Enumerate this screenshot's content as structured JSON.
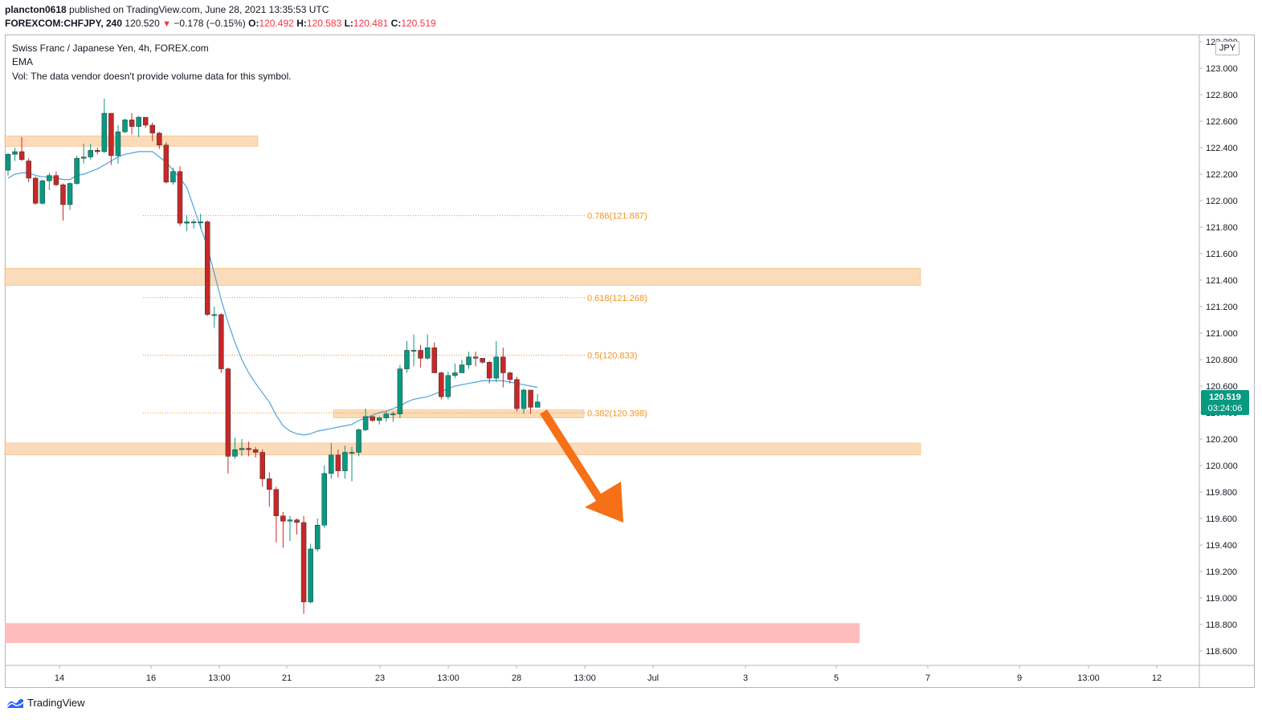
{
  "header": {
    "user": "plancton0618",
    "published_text": " published on TradingView.com, June 28, 2021 13:35:53 UTC",
    "symbol": "FOREXCOM:CHFJPY, 240",
    "last": "120.520",
    "change_arrow": "▼",
    "change": "−0.178 (−0.15%)",
    "o_label": "O:",
    "o": "120.492",
    "h_label": "H:",
    "h": "120.583",
    "l_label": "L:",
    "l": "120.481",
    "c_label": "C:",
    "c": "120.519"
  },
  "legend": {
    "title": "Swiss Franc / Japanese Yen, 4h, FOREX.com",
    "ema": "EMA",
    "vol": "Vol: The data vendor doesn't provide volume data for this symbol."
  },
  "price_axis": {
    "currency": "JPY",
    "current_price": "120.519",
    "countdown": "03:24:06"
  },
  "footer": {
    "brand": "TradingView"
  },
  "colors": {
    "up": "#089981",
    "down": "#c62828",
    "ema": "#4ea4dc",
    "zone": "#f9cfa1",
    "zone_red": "#ffb8b8",
    "fib": "#f7931a",
    "arrow": "#f57017"
  },
  "chart_data": {
    "type": "candlestick",
    "ylim": [
      118.5,
      123.2
    ],
    "y_ticks": [
      118.6,
      118.8,
      119.0,
      119.2,
      119.4,
      119.6,
      119.8,
      120.0,
      120.2,
      120.4,
      120.6,
      120.8,
      121.0,
      121.2,
      121.4,
      121.6,
      121.8,
      122.0,
      122.2,
      122.4,
      122.6,
      122.8,
      123.0,
      123.2
    ],
    "y_tick_labels": [
      "118.600",
      "118.800",
      "119.000",
      "119.200",
      "119.400",
      "119.600",
      "119.800",
      "120.000",
      "120.200",
      "120.400",
      "120.600",
      "120.800",
      "121.000",
      "121.200",
      "121.400",
      "121.600",
      "121.800",
      "122.000",
      "122.200",
      "122.400",
      "122.600",
      "122.800",
      "123.000",
      "123.200"
    ],
    "x_tick_labels": [
      "14",
      "16",
      "13:00",
      "21",
      "23",
      "13:00",
      "28",
      "13:00",
      "Jul",
      "3",
      "5",
      "7",
      "9",
      "13:00",
      "12"
    ],
    "fib_levels": [
      {
        "label": "0.786(121.887)",
        "value": 121.887
      },
      {
        "label": "0.618(121.268)",
        "value": 121.268
      },
      {
        "label": "0.5(120.833)",
        "value": 120.833
      },
      {
        "label": "0.382(120.398)",
        "value": 120.398
      }
    ],
    "zones": [
      {
        "low": 122.41,
        "high": 122.49,
        "color": "orange"
      },
      {
        "low": 121.36,
        "high": 121.49,
        "color": "orange"
      },
      {
        "low": 120.36,
        "high": 120.42,
        "color": "orange"
      },
      {
        "low": 120.08,
        "high": 120.17,
        "color": "orange"
      },
      {
        "low": 118.66,
        "high": 118.81,
        "color": "red"
      }
    ],
    "candles": [
      [
        122.23,
        122.35,
        122.19,
        122.36
      ],
      [
        122.35,
        122.37,
        122.3,
        122.4
      ],
      [
        122.37,
        122.31,
        122.3,
        122.48
      ],
      [
        122.3,
        122.17,
        122.14,
        122.32
      ],
      [
        122.17,
        121.98,
        121.97,
        122.18
      ],
      [
        121.98,
        122.15,
        121.97,
        122.16
      ],
      [
        122.15,
        122.19,
        122.08,
        122.21
      ],
      [
        122.19,
        122.12,
        122.11,
        122.22
      ],
      [
        122.12,
        121.97,
        121.85,
        122.13
      ],
      [
        121.97,
        122.13,
        121.93,
        122.14
      ],
      [
        122.13,
        122.32,
        122.12,
        122.34
      ],
      [
        122.32,
        122.33,
        122.28,
        122.43
      ],
      [
        122.33,
        122.38,
        122.31,
        122.43
      ],
      [
        122.38,
        122.37,
        122.35,
        122.4
      ],
      [
        122.37,
        122.66,
        122.36,
        122.77
      ],
      [
        122.66,
        122.34,
        122.27,
        122.66
      ],
      [
        122.34,
        122.52,
        122.28,
        122.57
      ],
      [
        122.52,
        122.61,
        122.51,
        122.62
      ],
      [
        122.61,
        122.56,
        122.5,
        122.66
      ],
      [
        122.56,
        122.63,
        122.48,
        122.64
      ],
      [
        122.63,
        122.57,
        122.55,
        122.63
      ],
      [
        122.57,
        122.51,
        122.45,
        122.59
      ],
      [
        122.51,
        122.42,
        122.39,
        122.52
      ],
      [
        122.42,
        122.14,
        122.13,
        122.44
      ],
      [
        122.14,
        122.22,
        122.12,
        122.25
      ],
      [
        122.22,
        121.83,
        121.81,
        122.26
      ],
      [
        121.83,
        121.84,
        121.77,
        121.89
      ],
      [
        121.84,
        121.84,
        121.79,
        121.86
      ],
      [
        121.84,
        121.84,
        121.79,
        121.9
      ],
      [
        121.84,
        121.14,
        121.13,
        121.85
      ],
      [
        121.14,
        121.14,
        121.04,
        121.2
      ],
      [
        121.14,
        120.73,
        120.7,
        121.15
      ],
      [
        120.73,
        120.07,
        119.94,
        120.74
      ],
      [
        120.07,
        120.12,
        120.05,
        120.21
      ],
      [
        120.12,
        120.13,
        120.07,
        120.2
      ],
      [
        120.13,
        120.12,
        120.07,
        120.18
      ],
      [
        120.12,
        120.1,
        120.06,
        120.14
      ],
      [
        120.1,
        119.9,
        119.84,
        120.12
      ],
      [
        119.9,
        119.82,
        119.69,
        119.95
      ],
      [
        119.82,
        119.62,
        119.42,
        119.84
      ],
      [
        119.62,
        119.58,
        119.38,
        119.65
      ],
      [
        119.58,
        119.59,
        119.43,
        119.62
      ],
      [
        119.59,
        119.57,
        119.48,
        119.6
      ],
      [
        119.57,
        118.97,
        118.88,
        119.62
      ],
      [
        118.97,
        119.37,
        118.96,
        119.41
      ],
      [
        119.37,
        119.55,
        119.35,
        119.6
      ],
      [
        119.55,
        119.94,
        119.53,
        120.0
      ],
      [
        119.94,
        120.08,
        119.9,
        120.17
      ],
      [
        120.08,
        119.96,
        119.91,
        120.12
      ],
      [
        119.96,
        120.1,
        119.9,
        120.15
      ],
      [
        120.1,
        120.1,
        119.88,
        120.14
      ],
      [
        120.1,
        120.27,
        120.07,
        120.28
      ],
      [
        120.27,
        120.37,
        120.26,
        120.43
      ],
      [
        120.37,
        120.34,
        120.33,
        120.37
      ],
      [
        120.34,
        120.36,
        120.31,
        120.37
      ],
      [
        120.36,
        120.39,
        120.33,
        120.41
      ],
      [
        120.39,
        120.39,
        120.33,
        120.41
      ],
      [
        120.39,
        120.73,
        120.36,
        120.76
      ],
      [
        120.73,
        120.87,
        120.7,
        120.94
      ],
      [
        120.87,
        120.87,
        120.75,
        120.99
      ],
      [
        120.87,
        120.81,
        120.74,
        120.91
      ],
      [
        120.81,
        120.89,
        120.8,
        120.99
      ],
      [
        120.89,
        120.7,
        120.7,
        120.93
      ],
      [
        120.7,
        120.52,
        120.5,
        120.71
      ],
      [
        120.52,
        120.68,
        120.5,
        120.71
      ],
      [
        120.68,
        120.7,
        120.66,
        120.77
      ],
      [
        120.7,
        120.76,
        120.73,
        120.8
      ],
      [
        120.76,
        120.82,
        120.73,
        120.86
      ],
      [
        120.82,
        120.81,
        120.75,
        120.86
      ],
      [
        120.81,
        120.78,
        120.77,
        120.81
      ],
      [
        120.78,
        120.66,
        120.62,
        120.79
      ],
      [
        120.66,
        120.82,
        120.63,
        120.94
      ],
      [
        120.82,
        120.7,
        120.59,
        120.89
      ],
      [
        120.7,
        120.65,
        120.62,
        120.71
      ],
      [
        120.65,
        120.43,
        120.41,
        120.67
      ],
      [
        120.43,
        120.57,
        120.39,
        120.58
      ],
      [
        120.57,
        120.44,
        120.39,
        120.57
      ],
      [
        120.44,
        120.48,
        120.46,
        120.54
      ]
    ],
    "ema": [
      122.17,
      122.2,
      122.21,
      122.21,
      122.19,
      122.18,
      122.18,
      122.17,
      122.16,
      122.16,
      122.19,
      122.2,
      122.22,
      122.24,
      122.27,
      122.3,
      122.33,
      122.35,
      122.36,
      122.37,
      122.37,
      122.37,
      122.33,
      122.29,
      122.23,
      122.17,
      122.1,
      121.95,
      121.8,
      121.65,
      121.45,
      121.25,
      121.08,
      120.93,
      120.8,
      120.7,
      120.62,
      120.55,
      120.48,
      120.38,
      120.3,
      120.26,
      120.24,
      120.23,
      120.24,
      120.26,
      120.27,
      120.28,
      120.29,
      120.3,
      120.31,
      120.34,
      120.36,
      120.38,
      120.4,
      120.41,
      120.43,
      120.45,
      120.48,
      120.5,
      120.51,
      120.52,
      120.54,
      120.56,
      120.58,
      120.6,
      120.61,
      120.62,
      120.63,
      120.64,
      120.64,
      120.64,
      120.64,
      120.63,
      120.62,
      120.61,
      120.6,
      120.59
    ]
  }
}
